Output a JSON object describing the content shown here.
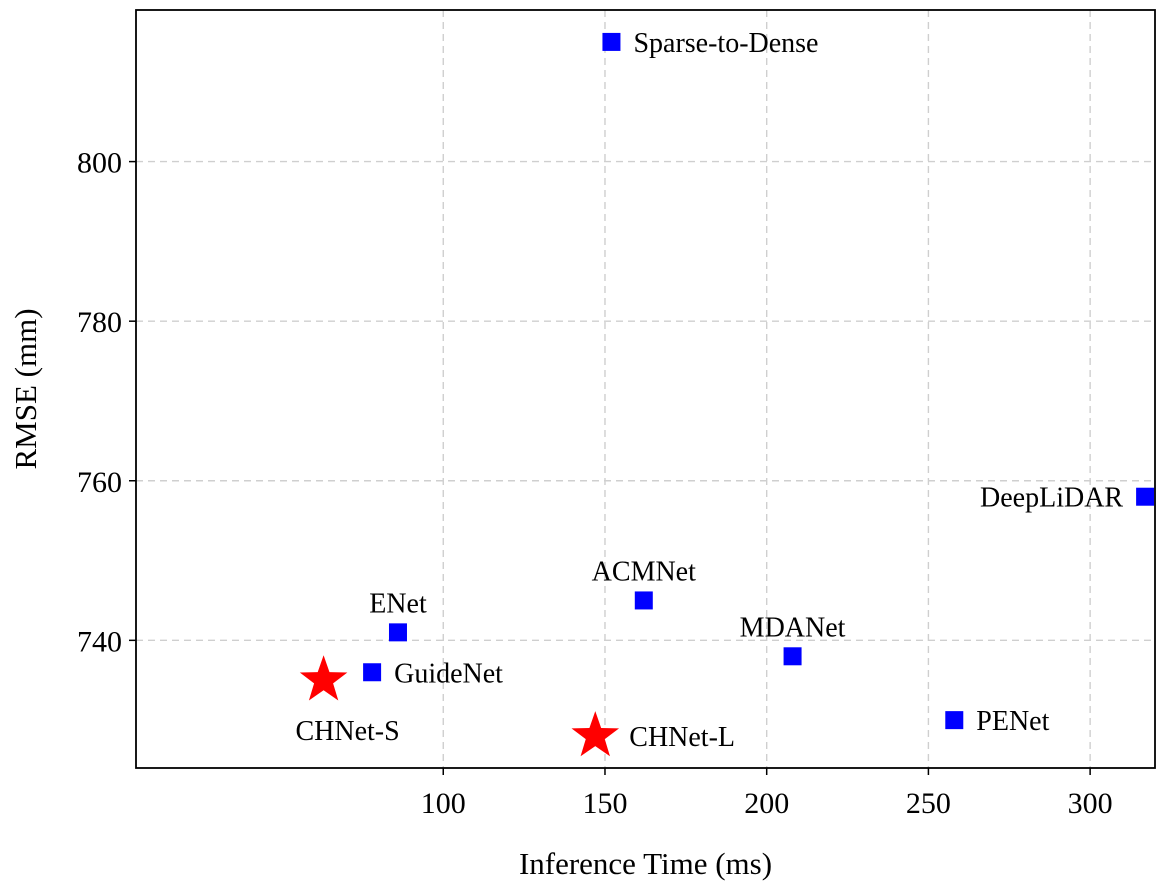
{
  "chart_data": {
    "type": "scatter",
    "title": "",
    "xlabel": "Inference Time (ms)",
    "ylabel": "RMSE (mm)",
    "xlim": [
      5,
      313
    ],
    "ylim": [
      724,
      819
    ],
    "xticks": [
      100,
      150,
      200,
      250,
      300
    ],
    "yticks": [
      740,
      760,
      780,
      800
    ],
    "grid": true,
    "series": [
      {
        "marker": "square",
        "color": "#0000ff",
        "points": [
          {
            "label": "Sparse-to-Dense",
            "x": 152,
            "y": 815,
            "label_pos": "right"
          },
          {
            "label": "ENet",
            "x": 86,
            "y": 741,
            "label_pos": "above"
          },
          {
            "label": "GuideNet",
            "x": 78,
            "y": 736,
            "label_pos": "right"
          },
          {
            "label": "ACMNet",
            "x": 162,
            "y": 745,
            "label_pos": "above"
          },
          {
            "label": "MDANet",
            "x": 208,
            "y": 738,
            "label_pos": "above"
          },
          {
            "label": "PENet",
            "x": 258,
            "y": 730,
            "label_pos": "right"
          },
          {
            "label": "DeepLiDAR",
            "x": 317,
            "y": 758,
            "label_pos": "left"
          }
        ]
      },
      {
        "marker": "star",
        "color": "#ff0000",
        "points": [
          {
            "label": "CHNet-S",
            "x": 63,
            "y": 735,
            "label_pos": "below"
          },
          {
            "label": "CHNet-L",
            "x": 147,
            "y": 728,
            "label_pos": "right"
          }
        ]
      }
    ]
  }
}
